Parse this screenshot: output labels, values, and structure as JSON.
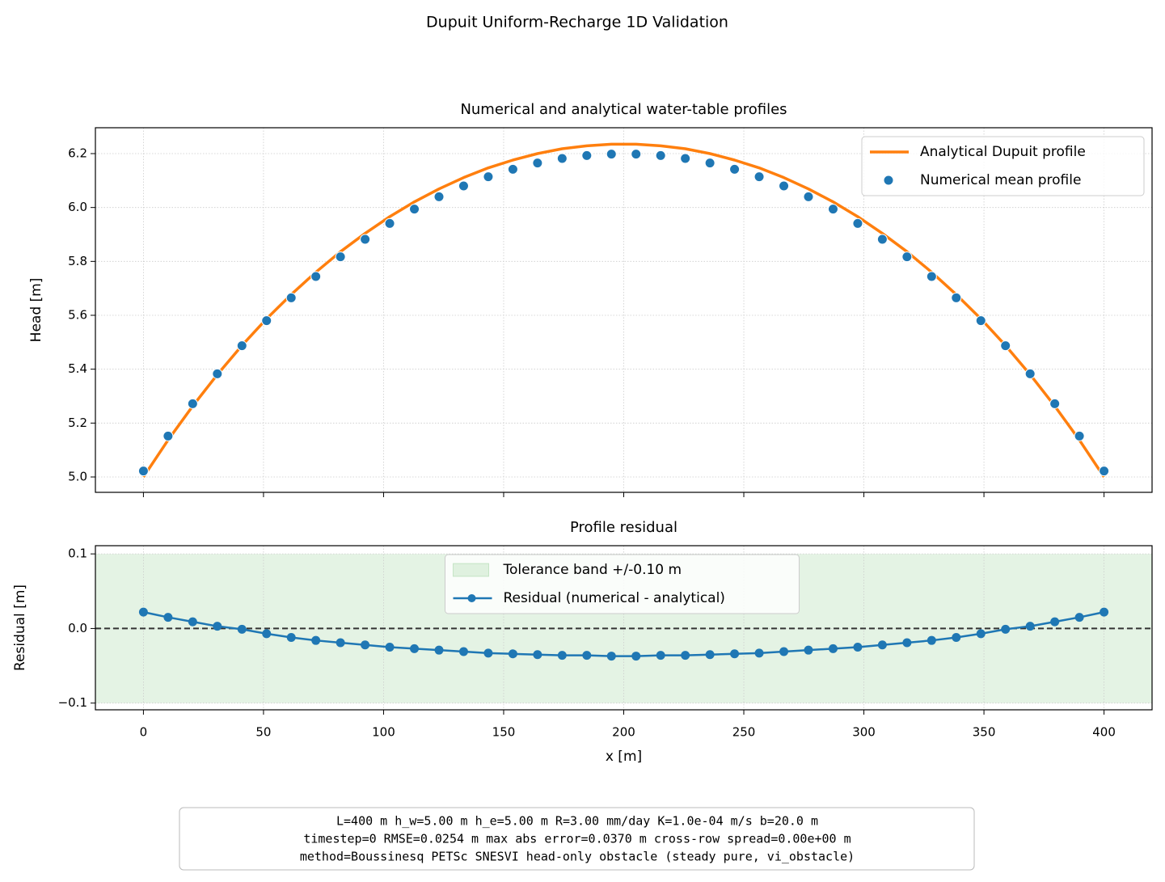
{
  "figure_title": "Dupuit Uniform-Recharge 1D Validation",
  "footer": [
    "L=400 m   h_w=5.00 m   h_e=5.00 m   R=3.00 mm/day   K=1.0e-04 m/s   b=20.0 m",
    "timestep=0   RMSE=0.0254 m   max abs error=0.0370 m   cross-row spread=0.00e+00 m",
    "method=Boussinesq PETSc SNESVI head-only obstacle (steady pure, vi_obstacle)"
  ],
  "chart_data": [
    {
      "type": "line",
      "title": "Numerical and analytical water-table profiles",
      "y_label": "Head [m]",
      "x": [
        0,
        10.26,
        20.51,
        30.77,
        41.03,
        51.28,
        61.54,
        71.79,
        82.05,
        92.31,
        102.56,
        112.82,
        123.08,
        133.33,
        143.59,
        153.85,
        164.1,
        174.36,
        184.62,
        194.87,
        205.13,
        215.38,
        225.64,
        235.9,
        246.15,
        256.41,
        266.67,
        276.92,
        287.18,
        297.44,
        307.69,
        317.95,
        328.21,
        338.46,
        348.72,
        358.97,
        369.23,
        379.49,
        389.74,
        400
      ],
      "series": [
        {
          "name": "Analytical Dupuit profile",
          "color": "#ff7f0e",
          "kind": "line",
          "values": [
            5.0,
            5.137,
            5.263,
            5.38,
            5.488,
            5.587,
            5.677,
            5.76,
            5.836,
            5.904,
            5.966,
            6.021,
            6.069,
            6.111,
            6.147,
            6.176,
            6.2,
            6.218,
            6.229,
            6.235,
            6.235,
            6.229,
            6.218,
            6.2,
            6.176,
            6.147,
            6.111,
            6.069,
            6.021,
            5.966,
            5.904,
            5.836,
            5.76,
            5.677,
            5.587,
            5.488,
            5.38,
            5.263,
            5.137,
            5.0
          ]
        },
        {
          "name": "Numerical mean profile",
          "color": "#1f77b4",
          "kind": "scatter",
          "values": [
            5.022,
            5.152,
            5.272,
            5.383,
            5.487,
            5.58,
            5.665,
            5.744,
            5.817,
            5.882,
            5.941,
            5.994,
            6.04,
            6.08,
            6.114,
            6.142,
            6.165,
            6.182,
            6.193,
            6.198,
            6.198,
            6.193,
            6.182,
            6.165,
            6.142,
            6.114,
            6.08,
            6.04,
            5.994,
            5.941,
            5.882,
            5.817,
            5.744,
            5.665,
            5.58,
            5.487,
            5.383,
            5.272,
            5.152,
            5.022
          ]
        }
      ],
      "xlim": [
        -20,
        420
      ],
      "ylim": [
        4.943,
        6.296
      ],
      "yticks": [
        {
          "value": 5,
          "label": "5.0"
        },
        5.2,
        5.4,
        5.6,
        5.8,
        {
          "value": 6,
          "label": "6.0"
        },
        6.2
      ],
      "grid": true,
      "legend": "upper right"
    },
    {
      "type": "line",
      "title": "Profile residual",
      "x_label": "x [m]",
      "y_label": "Residual [m]",
      "x": [
        0,
        10.26,
        20.51,
        30.77,
        41.03,
        51.28,
        61.54,
        71.79,
        82.05,
        92.31,
        102.56,
        112.82,
        123.08,
        133.33,
        143.59,
        153.85,
        164.1,
        174.36,
        184.62,
        194.87,
        205.13,
        215.38,
        225.64,
        235.9,
        246.15,
        256.41,
        266.67,
        276.92,
        287.18,
        297.44,
        307.69,
        317.95,
        328.21,
        338.46,
        348.72,
        358.97,
        369.23,
        379.49,
        389.74,
        400
      ],
      "band": {
        "name": "Tolerance band +/-0.10 m",
        "lower": -0.1,
        "upper": 0.1,
        "color": "#2ca02c"
      },
      "hline": 0,
      "series": [
        {
          "name": "Residual (numerical - analytical)",
          "color": "#1f77b4",
          "kind": "line-marker",
          "values": [
            0.022,
            0.015,
            0.009,
            0.003,
            -0.001,
            -0.007,
            -0.012,
            -0.016,
            -0.019,
            -0.022,
            -0.025,
            -0.027,
            -0.029,
            -0.031,
            -0.033,
            -0.034,
            -0.035,
            -0.036,
            -0.036,
            -0.037,
            -0.037,
            -0.036,
            -0.036,
            -0.035,
            -0.034,
            -0.033,
            -0.031,
            -0.029,
            -0.027,
            -0.025,
            -0.022,
            -0.019,
            -0.016,
            -0.012,
            -0.007,
            -0.001,
            0.003,
            0.009,
            0.015,
            0.022
          ]
        }
      ],
      "xlim": [
        -20,
        420
      ],
      "ylim": [
        -0.109,
        0.111
      ],
      "xticks": [
        0,
        50,
        100,
        150,
        200,
        250,
        300,
        350,
        400
      ],
      "yticks": [
        0.1,
        {
          "value": 0,
          "label": "0.0"
        },
        {
          "value": -0.1,
          "label": "−0.1"
        }
      ],
      "grid": true,
      "legend": "upper center"
    }
  ]
}
